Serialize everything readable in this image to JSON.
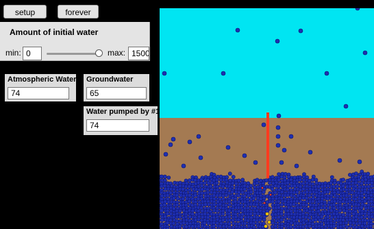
{
  "buttons": {
    "setup": "setup",
    "forever": "forever"
  },
  "slider": {
    "title": "Amount of initial water",
    "min_label": "min:",
    "min_value": "0",
    "max_label": "max:",
    "max_value": "1500",
    "level_fraction": 0.95
  },
  "monitors": {
    "atmospheric": {
      "label": "Atmospheric Water",
      "value": "74"
    },
    "groundwater": {
      "label": "Groundwater",
      "value": "65"
    },
    "pumped": {
      "label": "Water pumped by #1",
      "value": "74"
    }
  },
  "world": {
    "sky_color": "#00e5f2",
    "ground_color": "#a47a52",
    "water_color": "#1f2fb0",
    "pump_color": "#ff3b1f",
    "highlight_color": "#f2c200"
  }
}
